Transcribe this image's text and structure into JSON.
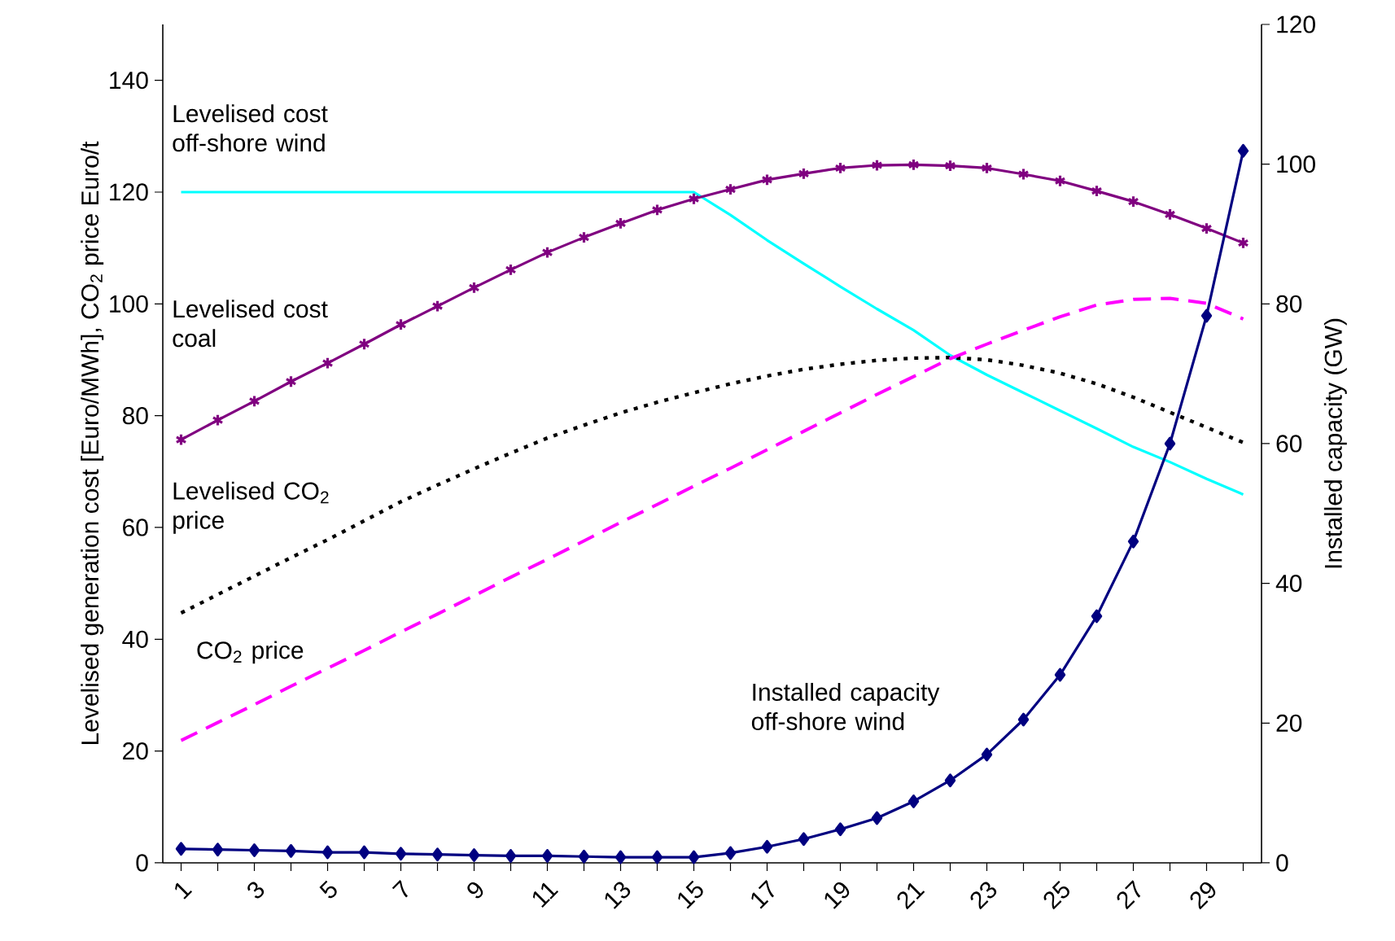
{
  "chart_data": {
    "type": "line",
    "ylabel": "Levelised generation cost [Euro/MWh], CO$_{2}$ price Euro/t",
    "y2label": "Installed capacity (GW)",
    "categories": [
      "1",
      null,
      "3",
      null,
      "5",
      null,
      "7",
      null,
      "9",
      null,
      "11",
      null,
      "13",
      null,
      "15",
      null,
      "17",
      null,
      "19",
      null,
      "21",
      null,
      "23",
      null,
      "25",
      null,
      "27",
      null,
      "29",
      null
    ],
    "ylim": [
      0,
      150
    ],
    "yticks": [
      0,
      20,
      40,
      60,
      80,
      100,
      120,
      140
    ],
    "y2lim": [
      0,
      120
    ],
    "y2ticks": [
      0,
      20,
      40,
      60,
      80,
      100,
      120
    ],
    "series": [
      {
        "name": "Levelised cost off-shore wind",
        "color": "#00ffff",
        "line_style": "solid",
        "values": [
          120,
          120,
          120,
          120,
          120,
          120,
          120,
          120,
          120,
          120,
          120,
          120,
          120,
          120,
          120,
          115.9,
          111.4,
          107.2,
          103.1,
          99.1,
          95.3,
          90.8,
          87.3,
          84.1,
          80.9,
          77.7,
          74.4,
          71.7,
          68.7,
          65.9
        ]
      },
      {
        "name": "Levelised cost coal",
        "color": "#800080",
        "marker": "cross",
        "line_style": "solid",
        "values": [
          75.7,
          79.2,
          82.6,
          86.1,
          89.4,
          92.8,
          96.3,
          99.6,
          102.9,
          106.1,
          109.2,
          111.9,
          114.4,
          116.8,
          118.8,
          120.5,
          122.2,
          123.3,
          124.3,
          124.8,
          124.9,
          124.7,
          124.3,
          123.2,
          122.0,
          120.2,
          118.3,
          116.0,
          113.5,
          110.9
        ]
      },
      {
        "name": "Levelised CO$_{2}$ price",
        "color": "#000000",
        "line_style": "dotted",
        "values": [
          44.7,
          48.0,
          51.3,
          54.6,
          57.8,
          61.2,
          64.6,
          67.6,
          70.5,
          73.3,
          76.0,
          78.3,
          80.5,
          82.4,
          84.1,
          85.7,
          87.1,
          88.3,
          89.2,
          89.9,
          90.3,
          90.4,
          90.0,
          89.0,
          87.6,
          85.7,
          83.3,
          80.6,
          77.9,
          75.2
        ]
      },
      {
        "name": "CO$_{2}$ price",
        "color": "#ff00ff",
        "line_style": "dashed",
        "values": [
          21.9,
          25.1,
          28.3,
          31.6,
          34.8,
          38.0,
          41.3,
          44.5,
          47.8,
          51.1,
          54.3,
          57.6,
          60.9,
          64.1,
          67.4,
          70.6,
          73.9,
          77.2,
          80.5,
          83.8,
          87.0,
          90.2,
          92.8,
          95.3,
          97.7,
          99.8,
          100.8,
          101.0,
          100.1,
          97.3
        ]
      },
      {
        "name": "Installed capacity off-shore wind",
        "color": "#000080",
        "marker": "diamond",
        "line_style": "solid",
        "axis": "y2",
        "values": [
          2.0,
          1.9,
          1.8,
          1.7,
          1.5,
          1.5,
          1.3,
          1.2,
          1.1,
          1.0,
          1.0,
          0.9,
          0.8,
          0.8,
          0.8,
          1.4,
          2.3,
          3.4,
          4.8,
          6.4,
          8.8,
          11.8,
          15.5,
          20.5,
          26.9,
          35.3,
          46.0,
          60.0,
          78.3,
          101.9
        ]
      }
    ]
  }
}
